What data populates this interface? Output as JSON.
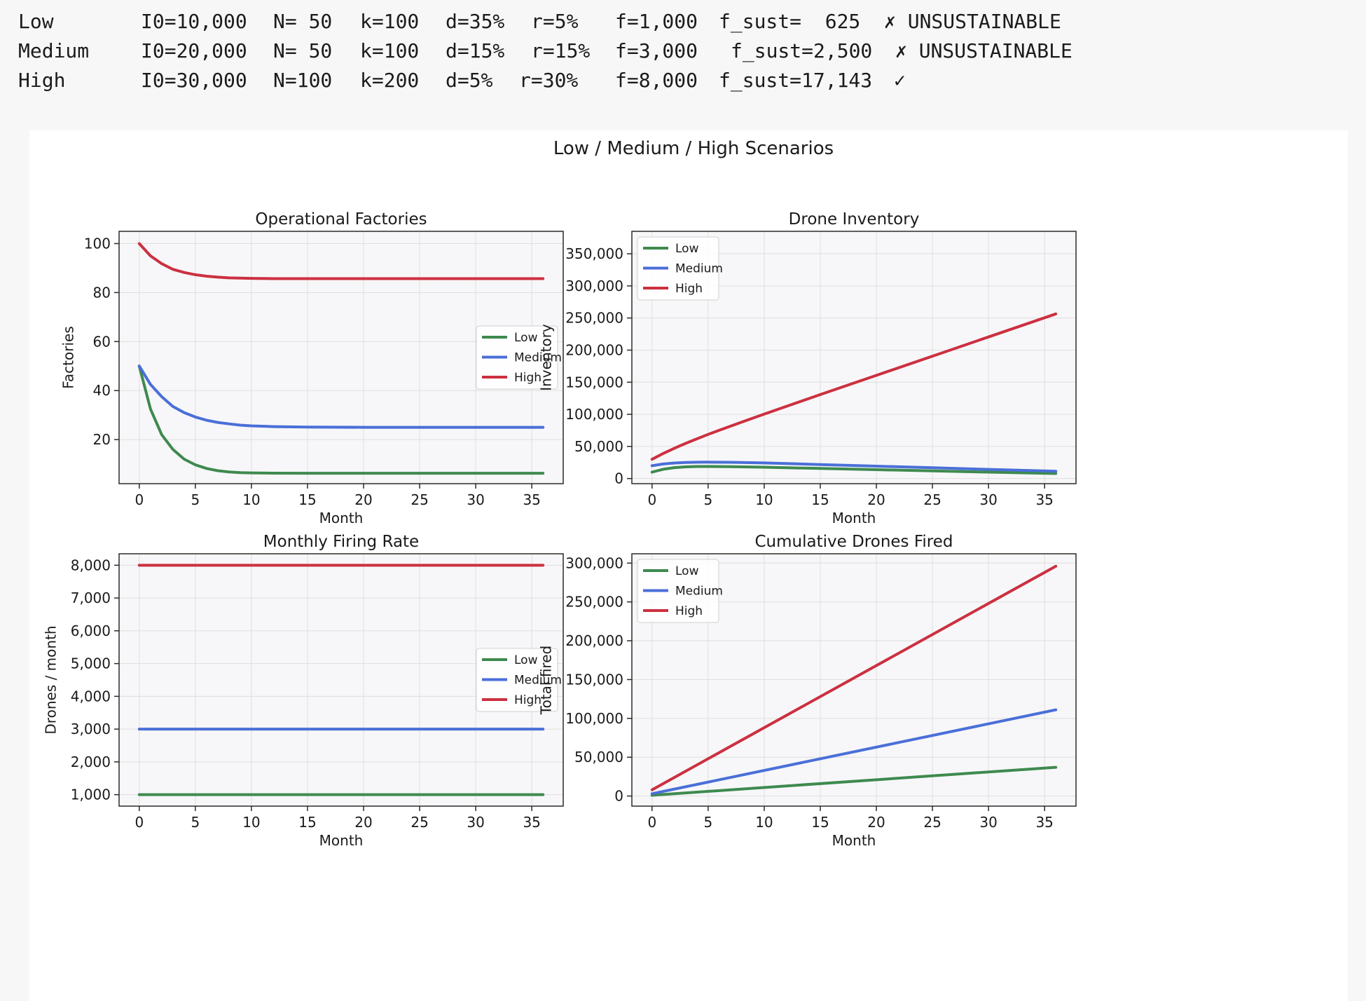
{
  "console": {
    "rows": [
      {
        "name": "Low",
        "I0": "I0=10,000",
        "N": "N= 50",
        "k": "k=100",
        "d": "d=35%",
        "r": "r=5%",
        "f": "f=1,000",
        "fsust": "f_sust=  625",
        "status": "✗ UNSUSTAINABLE"
      },
      {
        "name": "Medium",
        "I0": "I0=20,000",
        "N": "N= 50",
        "k": "k=100",
        "d": "d=15%",
        "r": "r=15%",
        "f": "f=3,000",
        "fsust": "f_sust=2,500",
        "status": "✗ UNSUSTAINABLE"
      },
      {
        "name": "High",
        "I0": "I0=30,000",
        "N": "N=100",
        "k": "k=200",
        "d": "d=5%",
        "r": "r=30%",
        "f": "f=8,000",
        "fsust": "f_sust=17,143",
        "status": "✓"
      }
    ]
  },
  "colors": {
    "Low": "#3e8a4f",
    "Medium": "#4a6fd8",
    "High": "#cc3040"
  },
  "chart_data": {
    "suptitle": "Low / Medium / High Scenarios",
    "panels": [
      {
        "type": "line",
        "title": "Operational Factories",
        "xlabel": "Month",
        "ylabel": "Factories",
        "xlim": [
          -1.8,
          37.8
        ],
        "ylim": [
          2,
          105
        ],
        "xticks": [
          0,
          5,
          10,
          15,
          20,
          25,
          30,
          35
        ],
        "yticks": [
          20,
          40,
          60,
          80,
          100
        ],
        "ytick_labels": [
          "20",
          "40",
          "60",
          "80",
          "100"
        ],
        "legend": "center-right",
        "series": [
          {
            "name": "Low",
            "points": [
              [
                0,
                50
              ],
              [
                1,
                32.5
              ],
              [
                2,
                22
              ],
              [
                3,
                16
              ],
              [
                4,
                12
              ],
              [
                5,
                9.7
              ],
              [
                6,
                8.2
              ],
              [
                7,
                7.3
              ],
              [
                8,
                6.8
              ],
              [
                9,
                6.5
              ],
              [
                10,
                6.4
              ],
              [
                12,
                6.3
              ],
              [
                15,
                6.25
              ],
              [
                20,
                6.25
              ],
              [
                36,
                6.25
              ]
            ]
          },
          {
            "name": "Medium",
            "points": [
              [
                0,
                50
              ],
              [
                1,
                42.5
              ],
              [
                2,
                37.5
              ],
              [
                3,
                33.5
              ],
              [
                4,
                31
              ],
              [
                5,
                29.2
              ],
              [
                6,
                27.9
              ],
              [
                7,
                27
              ],
              [
                8,
                26.4
              ],
              [
                9,
                25.9
              ],
              [
                10,
                25.6
              ],
              [
                12,
                25.3
              ],
              [
                15,
                25.1
              ],
              [
                20,
                25
              ],
              [
                36,
                25
              ]
            ]
          },
          {
            "name": "High",
            "points": [
              [
                0,
                100
              ],
              [
                1,
                95
              ],
              [
                2,
                91.8
              ],
              [
                3,
                89.5
              ],
              [
                4,
                88.2
              ],
              [
                5,
                87.3
              ],
              [
                6,
                86.7
              ],
              [
                7,
                86.3
              ],
              [
                8,
                86
              ],
              [
                10,
                85.8
              ],
              [
                12,
                85.7
              ],
              [
                15,
                85.7
              ],
              [
                36,
                85.7
              ]
            ]
          }
        ]
      },
      {
        "type": "line",
        "title": "Drone Inventory",
        "xlabel": "Month",
        "ylabel": "Inventory",
        "xlim": [
          -1.8,
          37.8
        ],
        "ylim": [
          -8000,
          385000
        ],
        "xticks": [
          0,
          5,
          10,
          15,
          20,
          25,
          30,
          35
        ],
        "yticks": [
          0,
          50000,
          100000,
          150000,
          200000,
          250000,
          300000,
          350000
        ],
        "ytick_labels": [
          "0",
          "50,000",
          "100,000",
          "150,000",
          "200,000",
          "250,000",
          "300,000",
          "350,000"
        ],
        "legend": "top-left",
        "series": [
          {
            "name": "Low",
            "points": [
              [
                0,
                10000
              ],
              [
                1,
                14500
              ],
              [
                2,
                17000
              ],
              [
                3,
                18200
              ],
              [
                4,
                18700
              ],
              [
                5,
                18800
              ],
              [
                7,
                18500
              ],
              [
                10,
                17600
              ],
              [
                15,
                15700
              ],
              [
                20,
                13800
              ],
              [
                25,
                11900
              ],
              [
                30,
                10000
              ],
              [
                36,
                7800
              ]
            ]
          },
          {
            "name": "Medium",
            "points": [
              [
                0,
                20000
              ],
              [
                1,
                22700
              ],
              [
                2,
                24200
              ],
              [
                3,
                25000
              ],
              [
                4,
                25400
              ],
              [
                5,
                25500
              ],
              [
                7,
                25300
              ],
              [
                10,
                24300
              ],
              [
                15,
                21800
              ],
              [
                20,
                19300
              ],
              [
                25,
                16800
              ],
              [
                30,
                14300
              ],
              [
                36,
                11300
              ]
            ]
          },
          {
            "name": "High",
            "points": [
              [
                0,
                30000
              ],
              [
                1,
                39000
              ],
              [
                2,
                47200
              ],
              [
                3,
                54800
              ],
              [
                4,
                61900
              ],
              [
                5,
                68700
              ],
              [
                6,
                75300
              ],
              [
                8,
                88000
              ],
              [
                10,
                100400
              ],
              [
                15,
                130700
              ],
              [
                20,
                160700
              ],
              [
                25,
                190600
              ],
              [
                30,
                220500
              ],
              [
                36,
                256400
              ]
            ]
          }
        ]
      },
      {
        "type": "line",
        "title": "Monthly Firing Rate",
        "xlabel": "Month",
        "ylabel": "Drones / month",
        "xlim": [
          -1.8,
          37.8
        ],
        "ylim": [
          650,
          8350
        ],
        "xticks": [
          0,
          5,
          10,
          15,
          20,
          25,
          30,
          35
        ],
        "yticks": [
          1000,
          2000,
          3000,
          4000,
          5000,
          6000,
          7000,
          8000
        ],
        "ytick_labels": [
          "1,000",
          "2,000",
          "3,000",
          "4,000",
          "5,000",
          "6,000",
          "7,000",
          "8,000"
        ],
        "legend": "center-right",
        "series": [
          {
            "name": "Low",
            "points": [
              [
                0,
                1000
              ],
              [
                36,
                1000
              ]
            ]
          },
          {
            "name": "Medium",
            "points": [
              [
                0,
                3000
              ],
              [
                36,
                3000
              ]
            ]
          },
          {
            "name": "High",
            "points": [
              [
                0,
                8000
              ],
              [
                36,
                8000
              ]
            ]
          }
        ]
      },
      {
        "type": "line",
        "title": "Cumulative Drones Fired",
        "xlabel": "Month",
        "ylabel": "Total fired",
        "xlim": [
          -1.8,
          37.8
        ],
        "ylim": [
          -13000,
          312000
        ],
        "xticks": [
          0,
          5,
          10,
          15,
          20,
          25,
          30,
          35
        ],
        "yticks": [
          0,
          50000,
          100000,
          150000,
          200000,
          250000,
          300000
        ],
        "ytick_labels": [
          "0",
          "50,000",
          "100,000",
          "150,000",
          "200,000",
          "250,000",
          "300,000"
        ],
        "legend": "top-left",
        "series": [
          {
            "name": "Low",
            "points": [
              [
                0,
                1000
              ],
              [
                36,
                37000
              ]
            ]
          },
          {
            "name": "Medium",
            "points": [
              [
                0,
                3000
              ],
              [
                36,
                111000
              ]
            ]
          },
          {
            "name": "High",
            "points": [
              [
                0,
                8000
              ],
              [
                36,
                296000
              ]
            ]
          }
        ]
      }
    ]
  }
}
